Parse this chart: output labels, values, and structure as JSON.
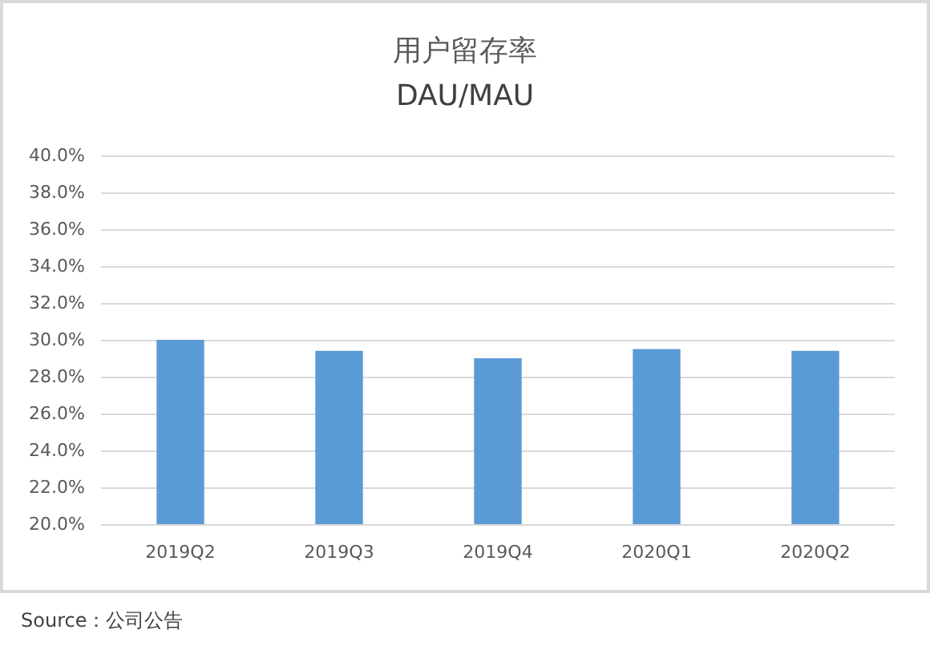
{
  "chart_data": {
    "type": "bar",
    "title": "用户留存率",
    "subtitle": "DAU/MAU",
    "categories": [
      "2019Q2",
      "2019Q3",
      "2019Q4",
      "2020Q1",
      "2020Q2"
    ],
    "values": [
      30.0,
      29.4,
      29.0,
      29.5,
      29.4
    ],
    "color": "#5b9bd5",
    "ylim": [
      20,
      40
    ],
    "yticks": [
      {
        "value": 20,
        "label": "20.0%"
      },
      {
        "value": 22,
        "label": "22.0%"
      },
      {
        "value": 24,
        "label": "24.0%"
      },
      {
        "value": 26,
        "label": "26.0%"
      },
      {
        "value": 28,
        "label": "28.0%"
      },
      {
        "value": 30,
        "label": "30.0%"
      },
      {
        "value": 32,
        "label": "32.0%"
      },
      {
        "value": 34,
        "label": "34.0%"
      },
      {
        "value": 36,
        "label": "36.0%"
      },
      {
        "value": 38,
        "label": "38.0%"
      },
      {
        "value": 40,
        "label": "40.0%"
      }
    ],
    "grid": "y",
    "annotations": [
      "Source：公司公告"
    ]
  }
}
